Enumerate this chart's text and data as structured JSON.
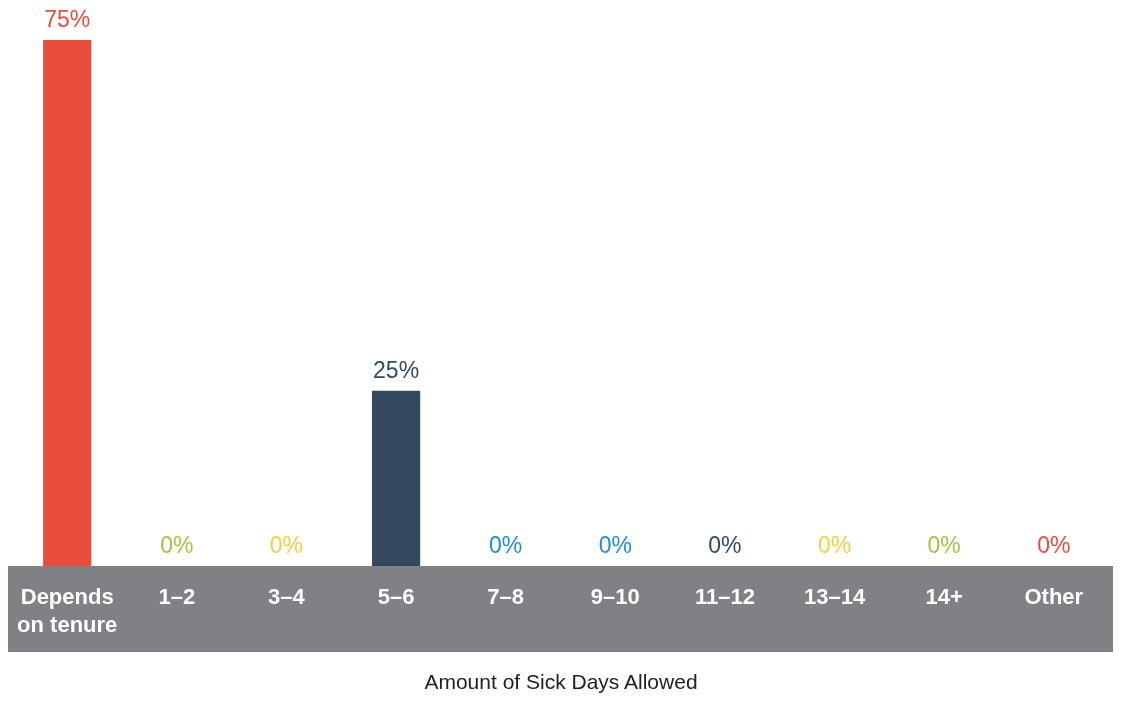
{
  "chart_data": {
    "type": "bar",
    "xlabel": "Amount of Sick Days Allowed",
    "categories": [
      "Depends on tenure",
      "1–2",
      "3–4",
      "5–6",
      "7–8",
      "9–10",
      "11–12",
      "13–14",
      "14+",
      "Other"
    ],
    "values": [
      75,
      0,
      0,
      25,
      0,
      0,
      0,
      0,
      0,
      0
    ],
    "colors": [
      "#e84c3d",
      "#9fc63b",
      "#f4d03f",
      "#34495e",
      "#1a8fd3",
      "#1a8fd3",
      "#34495e",
      "#f4d03f",
      "#9fc63b",
      "#e84c3d"
    ],
    "value_labels": [
      "75%",
      "0%",
      "0%",
      "25%",
      "0%",
      "0%",
      "0%",
      "0%",
      "0%",
      "0%"
    ]
  }
}
